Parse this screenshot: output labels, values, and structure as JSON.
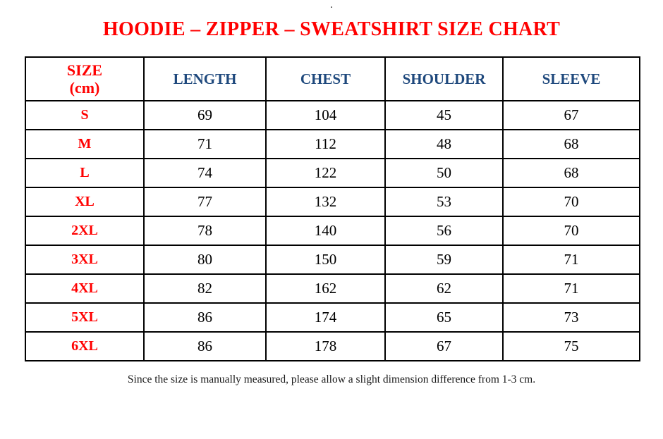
{
  "page": {
    "top_dot": ".",
    "title": "HOODIE – ZIPPER – SWEATSHIRT SIZE CHART",
    "footnote": "Since the size is manually measured, please allow a slight dimension difference from 1-3 cm."
  },
  "colors": {
    "title_red": "#ff0000",
    "size_label_red": "#ff0000",
    "header_blue": "#1f497d",
    "value_black": "#000000",
    "border_black": "#000000",
    "background": "#ffffff"
  },
  "table": {
    "header": {
      "size_line1": "SIZE",
      "size_line2": "(cm)",
      "cols": [
        "LENGTH",
        "CHEST",
        "SHOULDER",
        "SLEEVE"
      ]
    },
    "row_keys": [
      "size",
      "length",
      "chest",
      "shoulder",
      "sleeve"
    ],
    "rows": [
      {
        "size": "S",
        "length": "69",
        "chest": "104",
        "shoulder": "45",
        "sleeve": "67"
      },
      {
        "size": "M",
        "length": "71",
        "chest": "112",
        "shoulder": "48",
        "sleeve": "68"
      },
      {
        "size": "L",
        "length": "74",
        "chest": "122",
        "shoulder": "50",
        "sleeve": "68"
      },
      {
        "size": "XL",
        "length": "77",
        "chest": "132",
        "shoulder": "53",
        "sleeve": "70"
      },
      {
        "size": "2XL",
        "length": "78",
        "chest": "140",
        "shoulder": "56",
        "sleeve": "70"
      },
      {
        "size": "3XL",
        "length": "80",
        "chest": "150",
        "shoulder": "59",
        "sleeve": "71"
      },
      {
        "size": "4XL",
        "length": "82",
        "chest": "162",
        "shoulder": "62",
        "sleeve": "71"
      },
      {
        "size": "5XL",
        "length": "86",
        "chest": "174",
        "shoulder": "65",
        "sleeve": "73"
      },
      {
        "size": "6XL",
        "length": "86",
        "chest": "178",
        "shoulder": "67",
        "sleeve": "75"
      }
    ]
  }
}
